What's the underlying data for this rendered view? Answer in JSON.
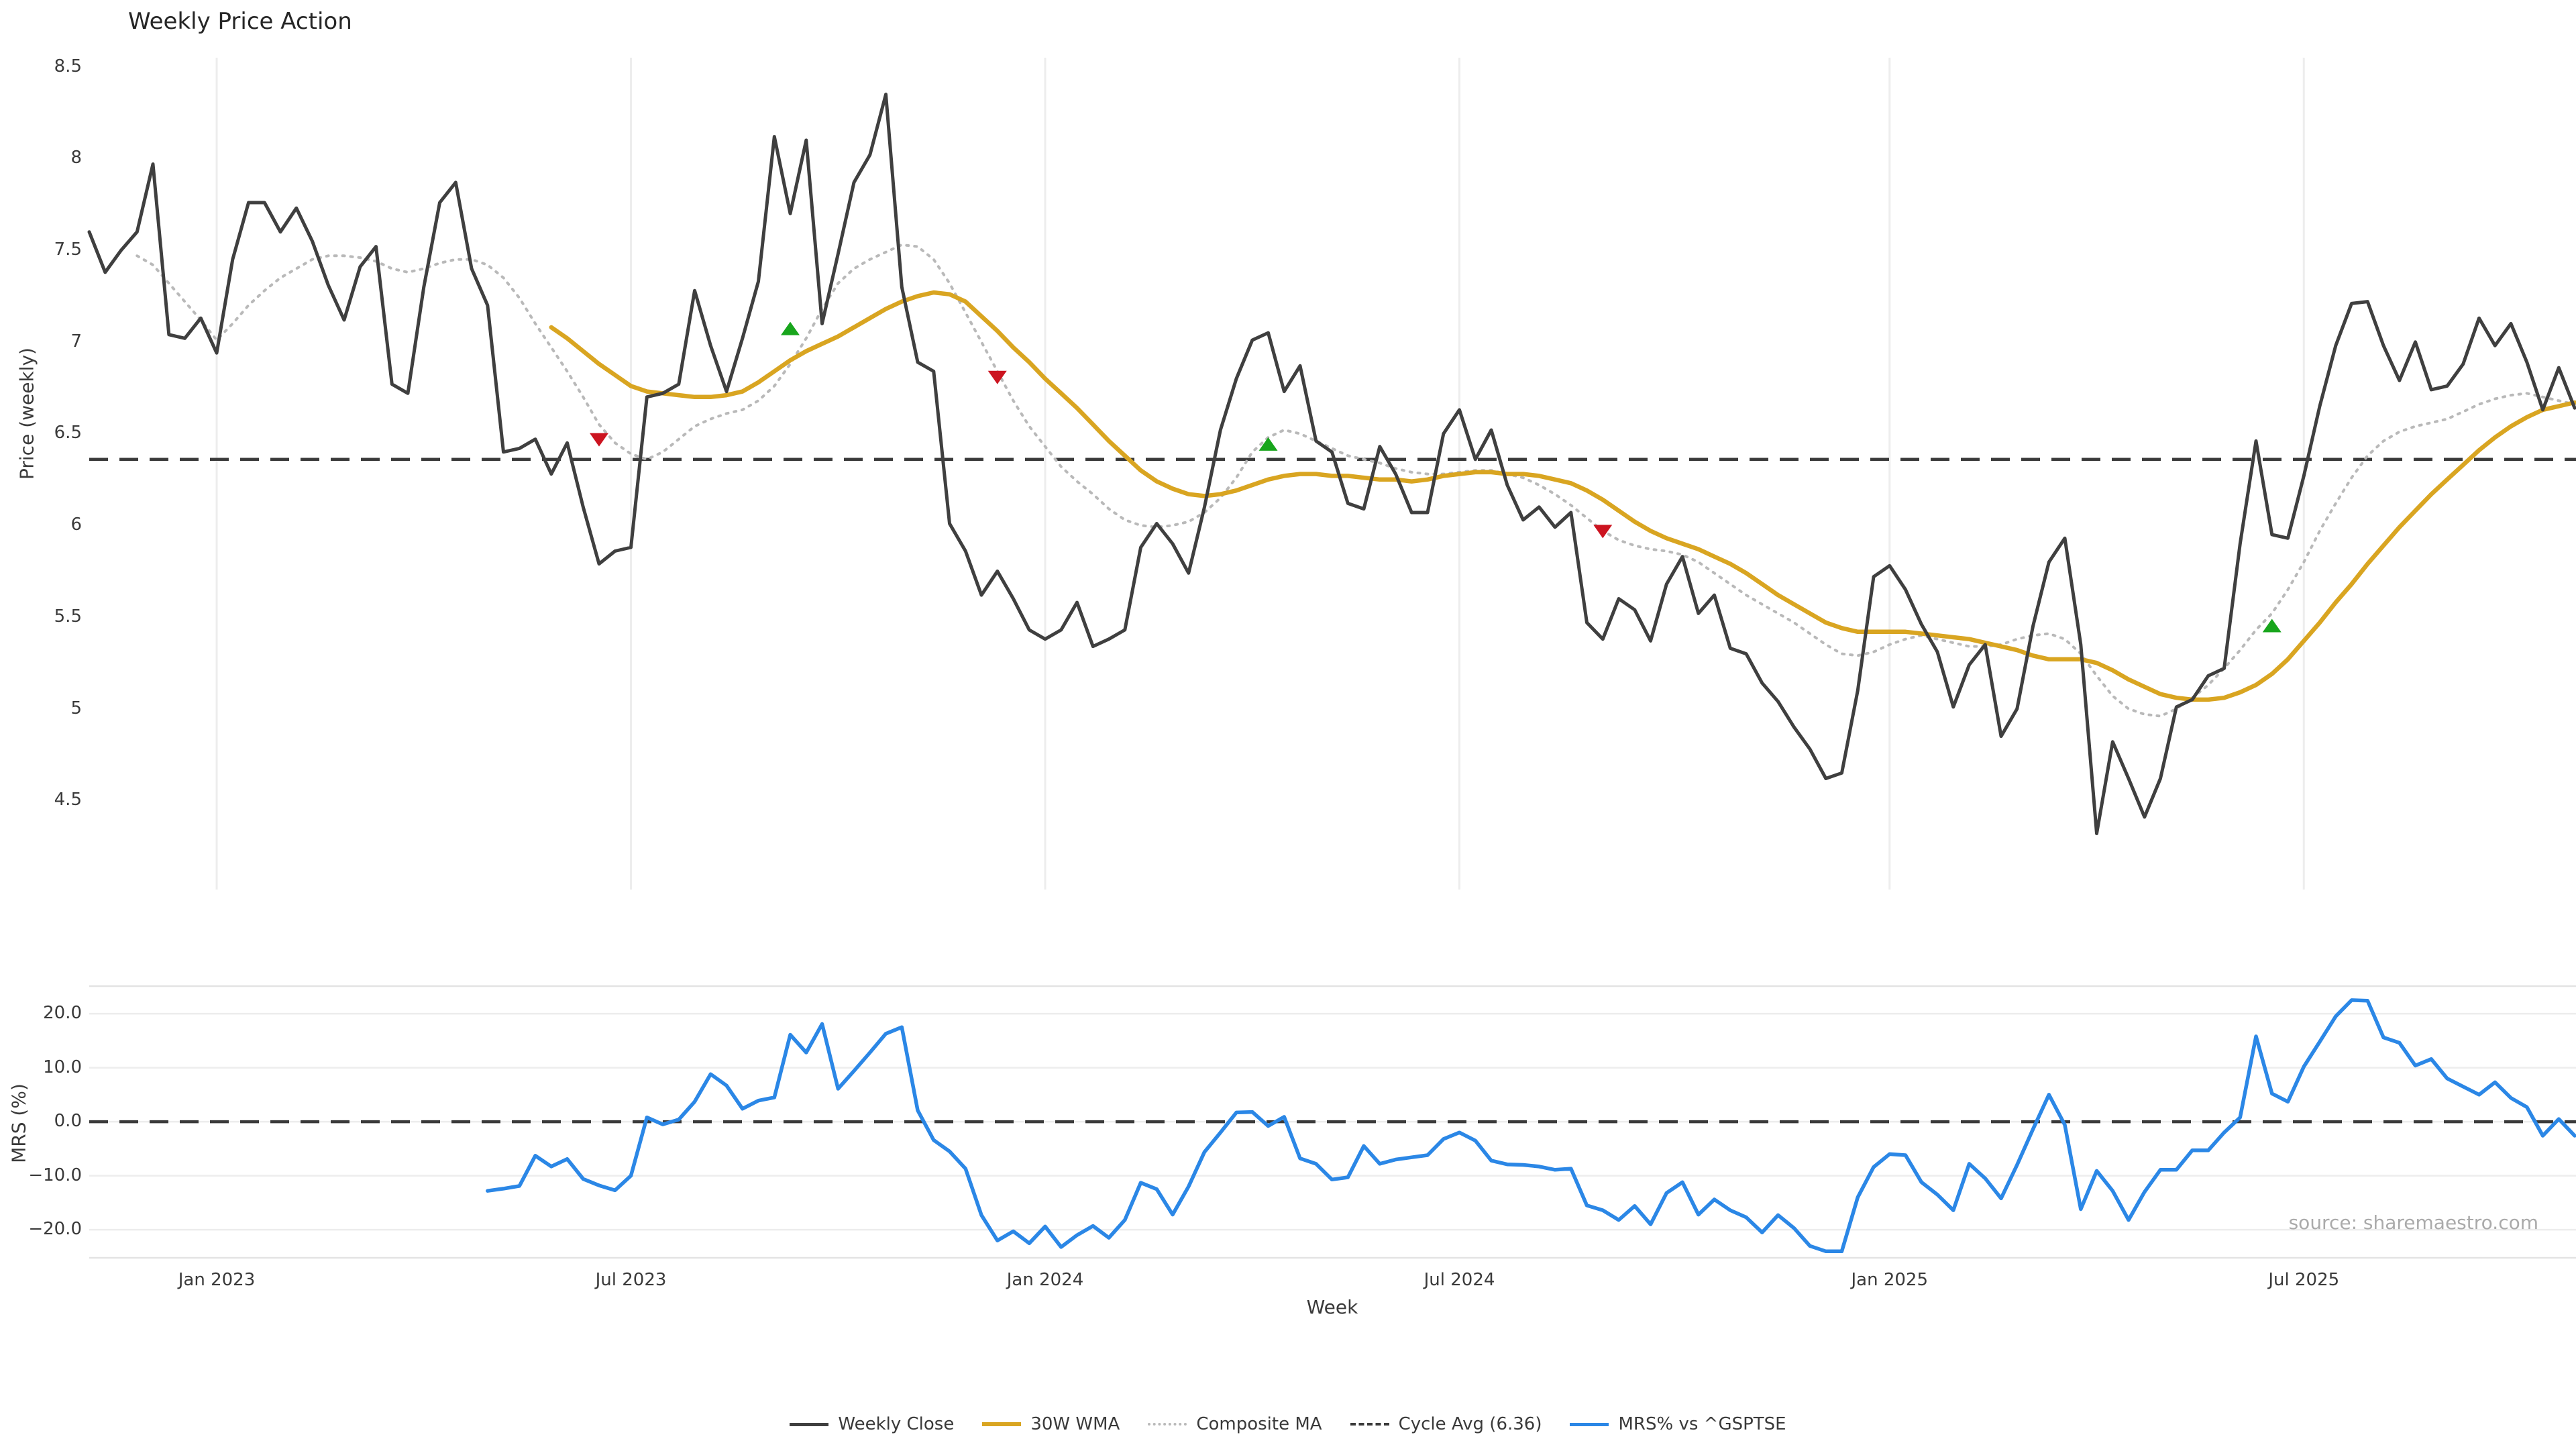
{
  "title": "Weekly Price Action",
  "source": "source: sharemaestro.com",
  "x_axis": {
    "label": "Week"
  },
  "price_panel": {
    "ylabel": "Price (weekly)"
  },
  "mrs_panel": {
    "ylabel": "MRS (%)"
  },
  "colors": {
    "weekly_close": "#3f3f3f",
    "wma30": "#d9a521",
    "composite": "#b9b9b9",
    "cycle_avg": "#3a3a3a",
    "mrs": "#2b87e6",
    "buy_marker": "#18a51c",
    "sell_marker": "#cc1420",
    "gridline": "#ededed",
    "panel_border": "#e3e3e3",
    "tick_text": "#3a3a3a",
    "source_text": "#aaaaaa"
  },
  "legend": [
    {
      "label": "Weekly Close",
      "stroke": "#3f3f3f",
      "style": "solid",
      "width": 5
    },
    {
      "label": "30W WMA",
      "stroke": "#d9a521",
      "style": "solid",
      "width": 6
    },
    {
      "label": "Composite MA",
      "stroke": "#b9b9b9",
      "style": "dotted",
      "width": 4
    },
    {
      "label": "Cycle Avg (6.36)",
      "stroke": "#3a3a3a",
      "style": "dashed",
      "width": 4
    },
    {
      "label": "MRS% vs ^GSPTSE",
      "stroke": "#2b87e6",
      "style": "solid",
      "width": 5
    }
  ],
  "chart_data": {
    "type": "line",
    "title": "Weekly Price Action",
    "xlabel": "Week",
    "x_unit": "week_index",
    "x_ticks": [
      {
        "label": "Jan 2023",
        "week": 8
      },
      {
        "label": "Jul 2023",
        "week": 34
      },
      {
        "label": "Jan 2024",
        "week": 60
      },
      {
        "label": "Jul 2024",
        "week": 86
      },
      {
        "label": "Jan 2025",
        "week": 113
      },
      {
        "label": "Jul 2025",
        "week": 139
      }
    ],
    "panels": [
      {
        "id": "price",
        "ylabel": "Price (weekly)",
        "ylim": [
          4.0,
          8.55
        ],
        "yticks": [
          {
            "value": 8.5,
            "label": "8.5"
          },
          {
            "value": 8.0,
            "label": "8"
          },
          {
            "value": 7.5,
            "label": "7.5"
          },
          {
            "value": 7.0,
            "label": "7"
          },
          {
            "value": 6.5,
            "label": "6.5"
          },
          {
            "value": 6.0,
            "label": "6"
          },
          {
            "value": 5.5,
            "label": "5.5"
          },
          {
            "value": 5.0,
            "label": "5"
          },
          {
            "value": 4.5,
            "label": "4.5"
          }
        ],
        "grid": "vertical",
        "cycle_avg": 6.36,
        "series": [
          {
            "name": "Weekly Close",
            "start_week": 0,
            "values": [
              7.6,
              7.38,
              7.5,
              7.6,
              7.97,
              7.04,
              7.02,
              7.13,
              6.94,
              7.45,
              7.76,
              7.76,
              7.6,
              7.73,
              7.55,
              7.31,
              7.12,
              7.41,
              7.52,
              6.77,
              6.72,
              7.3,
              7.76,
              7.87,
              7.4,
              7.2,
              6.4,
              6.42,
              6.47,
              6.28,
              6.45,
              6.1,
              5.79,
              5.86,
              5.88,
              6.7,
              6.72,
              6.77,
              7.28,
              6.98,
              6.73,
              7.02,
              7.33,
              8.12,
              7.7,
              8.1,
              7.1,
              7.48,
              7.87,
              8.02,
              8.35,
              7.3,
              6.89,
              6.84,
              6.01,
              5.86,
              5.62,
              5.75,
              5.6,
              5.43,
              5.38,
              5.43,
              5.58,
              5.34,
              5.38,
              5.43,
              5.88,
              6.01,
              5.9,
              5.74,
              6.1,
              6.52,
              6.8,
              7.01,
              7.05,
              6.73,
              6.87,
              6.46,
              6.4,
              6.12,
              6.09,
              6.43,
              6.28,
              6.07,
              6.07,
              6.5,
              6.63,
              6.36,
              6.52,
              6.22,
              6.03,
              6.1,
              5.99,
              6.07,
              5.47,
              5.38,
              5.6,
              5.54,
              5.37,
              5.68,
              5.83,
              5.52,
              5.62,
              5.33,
              5.3,
              5.14,
              5.04,
              4.9,
              4.78,
              4.62,
              4.65,
              5.1,
              5.72,
              5.78,
              5.65,
              5.46,
              5.31,
              5.01,
              5.24,
              5.35,
              4.85,
              5.0,
              5.45,
              5.8,
              5.93,
              5.35,
              4.32,
              4.82,
              4.62,
              4.41,
              4.62,
              5.01,
              5.05,
              5.18,
              5.22,
              5.9,
              6.46,
              5.95,
              5.93,
              6.27,
              6.65,
              6.98,
              7.21,
              7.22,
              6.98,
              6.79,
              7.0,
              6.74,
              6.76,
              6.88,
              7.13,
              6.98,
              7.1,
              6.89,
              6.63,
              6.86,
              6.64
            ]
          },
          {
            "name": "30W WMA",
            "start_week": 29,
            "values": [
              7.08,
              7.02,
              6.95,
              6.88,
              6.82,
              6.76,
              6.73,
              6.72,
              6.71,
              6.7,
              6.7,
              6.71,
              6.73,
              6.78,
              6.84,
              6.9,
              6.95,
              6.99,
              7.03,
              7.08,
              7.13,
              7.18,
              7.22,
              7.25,
              7.27,
              7.26,
              7.22,
              7.14,
              7.06,
              6.97,
              6.89,
              6.8,
              6.72,
              6.64,
              6.55,
              6.46,
              6.38,
              6.3,
              6.24,
              6.2,
              6.17,
              6.16,
              6.17,
              6.19,
              6.22,
              6.25,
              6.27,
              6.28,
              6.28,
              6.27,
              6.27,
              6.26,
              6.25,
              6.25,
              6.24,
              6.25,
              6.27,
              6.28,
              6.29,
              6.29,
              6.28,
              6.28,
              6.27,
              6.25,
              6.23,
              6.19,
              6.14,
              6.08,
              6.02,
              5.97,
              5.93,
              5.9,
              5.87,
              5.83,
              5.79,
              5.74,
              5.68,
              5.62,
              5.57,
              5.52,
              5.47,
              5.44,
              5.42,
              5.42,
              5.42,
              5.42,
              5.41,
              5.4,
              5.39,
              5.38,
              5.36,
              5.34,
              5.32,
              5.29,
              5.27,
              5.27,
              5.27,
              5.25,
              5.21,
              5.16,
              5.12,
              5.08,
              5.06,
              5.05,
              5.05,
              5.06,
              5.09,
              5.13,
              5.19,
              5.27,
              5.37,
              5.47,
              5.58,
              5.68,
              5.79,
              5.89,
              5.99,
              6.08,
              6.17,
              6.25,
              6.33,
              6.41,
              6.48,
              6.54,
              6.59,
              6.63,
              6.65,
              6.67
            ]
          },
          {
            "name": "Composite MA",
            "start_week": 3,
            "values": [
              7.47,
              7.42,
              7.32,
              7.22,
              7.12,
              7.01,
              7.1,
              7.2,
              7.28,
              7.35,
              7.4,
              7.45,
              7.47,
              7.47,
              7.46,
              7.44,
              7.4,
              7.38,
              7.4,
              7.43,
              7.45,
              7.45,
              7.42,
              7.35,
              7.24,
              7.1,
              6.97,
              6.84,
              6.7,
              6.55,
              6.45,
              6.39,
              6.36,
              6.4,
              6.47,
              6.54,
              6.58,
              6.61,
              6.63,
              6.68,
              6.76,
              6.88,
              7.02,
              7.18,
              7.32,
              7.4,
              7.45,
              7.49,
              7.53,
              7.52,
              7.45,
              7.32,
              7.16,
              7.0,
              6.84,
              6.68,
              6.54,
              6.43,
              6.32,
              6.24,
              6.17,
              6.09,
              6.03,
              6.0,
              5.99,
              6.0,
              6.02,
              6.07,
              6.15,
              6.26,
              6.4,
              6.48,
              6.52,
              6.5,
              6.46,
              6.42,
              6.38,
              6.36,
              6.34,
              6.31,
              6.29,
              6.28,
              6.28,
              6.29,
              6.3,
              6.3,
              6.28,
              6.26,
              6.22,
              6.17,
              6.11,
              6.04,
              5.97,
              5.92,
              5.89,
              5.87,
              5.86,
              5.84,
              5.8,
              5.74,
              5.68,
              5.62,
              5.57,
              5.52,
              5.47,
              5.41,
              5.35,
              5.3,
              5.29,
              5.31,
              5.35,
              5.38,
              5.4,
              5.38,
              5.36,
              5.34,
              5.34,
              5.35,
              5.38,
              5.4,
              5.41,
              5.38,
              5.3,
              5.18,
              5.07,
              5.0,
              4.97,
              4.96,
              5.0,
              5.06,
              5.13,
              5.22,
              5.32,
              5.43,
              5.52,
              5.65,
              5.8,
              5.97,
              6.12,
              6.26,
              6.38,
              6.46,
              6.51,
              6.54,
              6.56,
              6.58,
              6.62,
              6.66,
              6.69,
              6.71,
              6.72,
              6.7,
              6.68,
              6.66
            ]
          }
        ],
        "markers": {
          "buy": [
            {
              "week": 44,
              "price": 7.07
            },
            {
              "week": 74,
              "price": 6.44
            },
            {
              "week": 137,
              "price": 5.45
            }
          ],
          "sell": [
            {
              "week": 32,
              "price": 6.47
            },
            {
              "week": 57,
              "price": 6.81
            },
            {
              "week": 95,
              "price": 5.97
            }
          ]
        }
      },
      {
        "id": "mrs",
        "ylabel": "MRS (%)",
        "ylim": [
          -25.2,
          25.1
        ],
        "yticks": [
          {
            "value": 20,
            "label": "20.0"
          },
          {
            "value": 10,
            "label": "10.0"
          },
          {
            "value": 0,
            "label": "0.0"
          },
          {
            "value": -10,
            "label": "−10.0"
          },
          {
            "value": -20,
            "label": "−20.0"
          }
        ],
        "grid": "horizontal",
        "zero_line": 0.0,
        "series": [
          {
            "name": "MRS% vs ^GSPTSE",
            "start_week": 25,
            "values": [
              -12.8,
              -12.4,
              -11.9,
              -6.3,
              -8.3,
              -6.9,
              -10.6,
              -11.8,
              -12.7,
              -10.0,
              0.8,
              -0.5,
              0.4,
              3.7,
              8.8,
              6.7,
              2.4,
              3.9,
              4.5,
              16.1,
              12.8,
              18.1,
              6.1,
              9.4,
              12.8,
              16.3,
              17.5,
              2.1,
              -3.4,
              -5.5,
              -8.7,
              -17.3,
              -22.0,
              -20.3,
              -22.5,
              -19.4,
              -23.2,
              -21.0,
              -19.3,
              -21.5,
              -18.2,
              -11.3,
              -12.5,
              -17.2,
              -12.0,
              -5.6,
              -2.0,
              1.7,
              1.8,
              -0.8,
              0.9,
              -6.8,
              -7.8,
              -10.7,
              -10.3,
              -4.5,
              -7.8,
              -7.0,
              -6.6,
              -6.2,
              -3.2,
              -2.0,
              -3.5,
              -7.2,
              -7.9,
              -8.0,
              -8.3,
              -8.9,
              -8.7,
              -15.5,
              -16.4,
              -18.2,
              -15.6,
              -19.0,
              -13.2,
              -11.2,
              -17.2,
              -14.4,
              -16.4,
              -17.7,
              -20.5,
              -17.3,
              -19.7,
              -23.0,
              -24.0,
              -24.0,
              -14.0,
              -8.4,
              -6.0,
              -6.2,
              -11.2,
              -13.5,
              -16.4,
              -7.8,
              -10.5,
              -14.2,
              -8.0,
              -1.4,
              5.0,
              -0.6,
              -16.2,
              -9.1,
              -12.8,
              -18.2,
              -13.0,
              -8.9,
              -8.9,
              -5.3,
              -5.3,
              -2.0,
              0.8,
              15.8,
              5.2,
              3.7,
              10.2,
              14.8,
              19.5,
              22.5,
              22.4,
              15.6,
              14.6,
              10.4,
              11.6,
              8.0,
              6.5,
              5.0,
              7.3,
              4.4,
              2.7,
              -2.6,
              0.5,
              -2.6
            ]
          }
        ]
      }
    ]
  },
  "layout_note": ""
}
